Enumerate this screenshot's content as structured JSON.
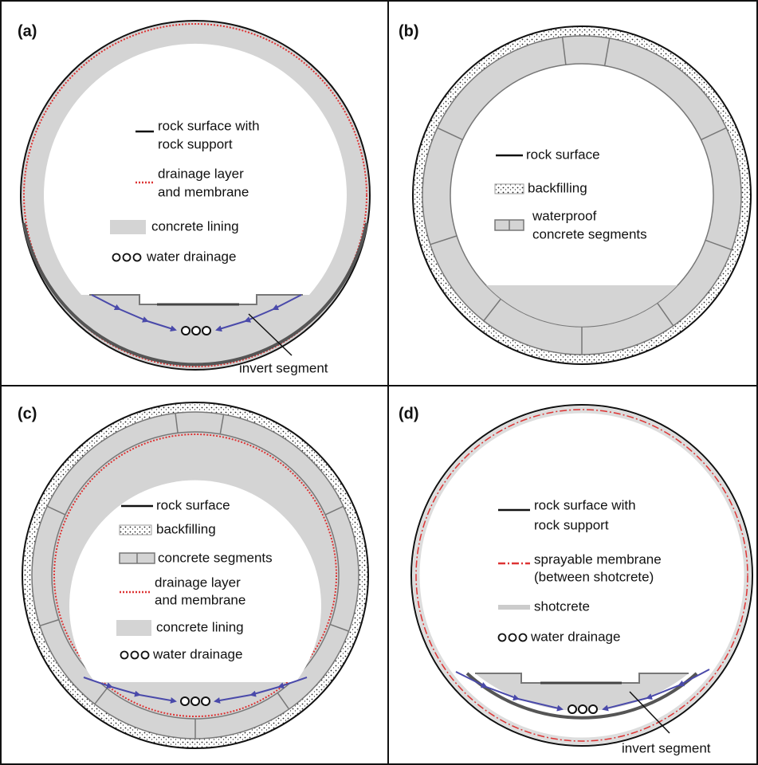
{
  "panels": [
    {
      "label": "(a)",
      "legend": [
        {
          "lines": [
            "rock surface with",
            "rock support"
          ]
        },
        {
          "lines": [
            "drainage layer",
            "and membrane"
          ]
        },
        {
          "lines": [
            "concrete lining"
          ]
        },
        {
          "lines": [
            "water drainage"
          ]
        }
      ],
      "callout": "invert segment"
    },
    {
      "label": "(b)",
      "legend": [
        {
          "lines": [
            "rock surface"
          ]
        },
        {
          "lines": [
            "backfilling"
          ]
        },
        {
          "lines": [
            "waterproof",
            "concrete segments"
          ]
        }
      ]
    },
    {
      "label": "(c)",
      "legend": [
        {
          "lines": [
            "rock surface"
          ]
        },
        {
          "lines": [
            "backfilling"
          ]
        },
        {
          "lines": [
            "concrete segments"
          ]
        },
        {
          "lines": [
            "drainage layer",
            "and membrane"
          ]
        },
        {
          "lines": [
            "concrete lining"
          ]
        },
        {
          "lines": [
            "water drainage"
          ]
        }
      ]
    },
    {
      "label": "(d)",
      "legend": [
        {
          "lines": [
            "rock surface with",
            "rock support"
          ]
        },
        {
          "lines": [
            "sprayable membrane",
            "(between shotcrete)"
          ]
        },
        {
          "lines": [
            "shotcrete"
          ]
        },
        {
          "lines": [
            "water drainage"
          ]
        }
      ],
      "callout": "invert segment"
    }
  ]
}
